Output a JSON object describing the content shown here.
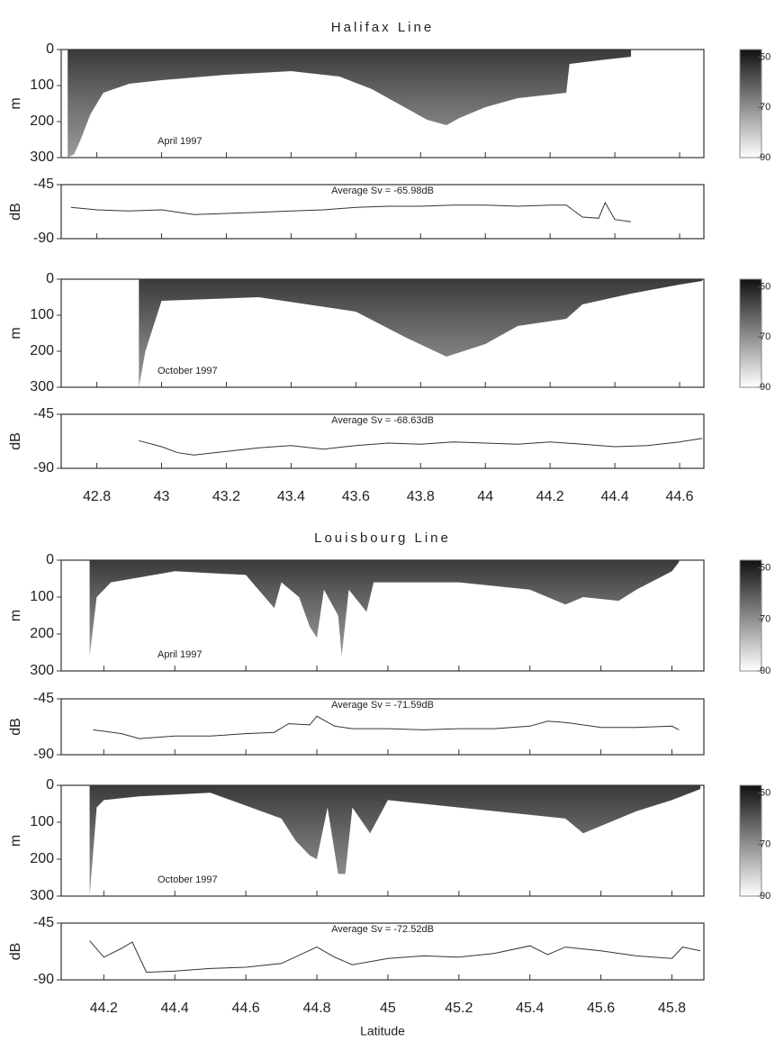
{
  "chart_data": [
    {
      "type": "echogram",
      "title": "Halifax Line",
      "annotation": "April 1997",
      "ylabel": "m",
      "x": [
        42.71,
        42.73,
        42.75,
        42.78,
        42.82,
        42.9,
        43.0,
        43.2,
        43.4,
        43.55,
        43.65,
        43.75,
        43.82,
        43.88,
        43.92,
        44.0,
        44.1,
        44.2,
        44.25,
        44.26,
        44.35,
        44.45
      ],
      "values": [
        300,
        290,
        250,
        180,
        120,
        95,
        85,
        70,
        60,
        75,
        110,
        160,
        195,
        210,
        190,
        160,
        135,
        125,
        120,
        40,
        30,
        20
      ],
      "xlim": [
        42.69,
        44.675
      ],
      "ylim": [
        300,
        0
      ],
      "yticks": [
        0,
        100,
        200,
        300
      ],
      "clim": [
        -90,
        -47
      ],
      "colorbar_ticks": [
        {
          "value": -50,
          "label": "50"
        },
        {
          "value": -70,
          "label": "70"
        },
        {
          "value": -90,
          "label": "90"
        }
      ]
    },
    {
      "type": "line",
      "annotation": "Average Sv = -65.98dB",
      "ylabel": "dB",
      "color": "#333333",
      "x": [
        42.72,
        42.8,
        42.9,
        43.0,
        43.1,
        43.2,
        43.3,
        43.4,
        43.5,
        43.6,
        43.7,
        43.8,
        43.9,
        44.0,
        44.1,
        44.2,
        44.25,
        44.3,
        44.35,
        44.37,
        44.4,
        44.45
      ],
      "values": [
        -64,
        -66,
        -67,
        -66,
        -70,
        -69,
        -68,
        -67,
        -66,
        -64,
        -63,
        -63,
        -62,
        -62,
        -63,
        -62,
        -62,
        -72,
        -73,
        -60,
        -74,
        -76
      ],
      "xlim": [
        42.69,
        44.675
      ],
      "ylim": [
        -90,
        -45
      ],
      "yticks": [
        -45,
        -90
      ]
    },
    {
      "type": "echogram",
      "annotation": "October 1997",
      "ylabel": "m",
      "x": [
        42.93,
        42.95,
        43.0,
        43.3,
        43.6,
        43.75,
        43.88,
        44.0,
        44.1,
        44.25,
        44.3,
        44.45,
        44.6,
        44.67
      ],
      "values": [
        300,
        200,
        60,
        50,
        90,
        160,
        215,
        180,
        130,
        110,
        70,
        40,
        15,
        5
      ],
      "xlim": [
        42.69,
        44.675
      ],
      "ylim": [
        300,
        0
      ],
      "yticks": [
        0,
        100,
        200,
        300
      ],
      "clim": [
        -90,
        -47
      ],
      "colorbar_ticks": [
        {
          "value": -50,
          "label": "50"
        },
        {
          "value": -70,
          "label": "70"
        },
        {
          "value": -90,
          "label": "90"
        }
      ]
    },
    {
      "type": "line",
      "annotation": "Average Sv = -68.63dB",
      "ylabel": "dB",
      "color": "#333333",
      "x": [
        42.93,
        43.0,
        43.05,
        43.1,
        43.2,
        43.3,
        43.4,
        43.5,
        43.6,
        43.7,
        43.8,
        43.9,
        44.0,
        44.1,
        44.2,
        44.3,
        44.4,
        44.5,
        44.6,
        44.67
      ],
      "values": [
        -67,
        -72,
        -77,
        -79,
        -76,
        -73,
        -71,
        -74,
        -71,
        -69,
        -70,
        -68,
        -69,
        -70,
        -68,
        -70,
        -72,
        -71,
        -68,
        -65
      ],
      "xlim": [
        42.69,
        44.675
      ],
      "ylim": [
        -90,
        -45
      ],
      "yticks": [
        -45,
        -90
      ],
      "xticks": [
        42.8,
        43,
        43.2,
        43.4,
        43.6,
        43.8,
        44,
        44.2,
        44.4,
        44.6
      ]
    },
    {
      "type": "echogram",
      "title": "Louisbourg Line",
      "annotation": "April 1997",
      "ylabel": "m",
      "x": [
        44.16,
        44.18,
        44.22,
        44.4,
        44.6,
        44.68,
        44.7,
        44.75,
        44.78,
        44.8,
        44.82,
        44.86,
        44.87,
        44.89,
        44.94,
        44.96,
        45.2,
        45.4,
        45.5,
        45.55,
        45.65,
        45.7,
        45.8,
        45.82
      ],
      "values": [
        260,
        100,
        60,
        30,
        40,
        130,
        60,
        100,
        180,
        210,
        80,
        150,
        260,
        80,
        140,
        60,
        60,
        80,
        120,
        100,
        110,
        80,
        30,
        5
      ],
      "xlim": [
        44.08,
        45.89
      ],
      "ylim": [
        300,
        0
      ],
      "yticks": [
        0,
        100,
        200,
        300
      ],
      "clim": [
        -90,
        -47
      ],
      "colorbar_ticks": [
        {
          "value": -50,
          "label": "50"
        },
        {
          "value": -70,
          "label": "70"
        },
        {
          "value": -90,
          "label": "90"
        }
      ]
    },
    {
      "type": "line",
      "annotation": "Average Sv = -71.59dB",
      "ylabel": "dB",
      "color": "#333333",
      "x": [
        44.17,
        44.25,
        44.3,
        44.4,
        44.5,
        44.6,
        44.68,
        44.72,
        44.78,
        44.8,
        44.85,
        44.9,
        45.0,
        45.1,
        45.2,
        45.3,
        45.4,
        45.45,
        45.5,
        45.6,
        45.7,
        45.8,
        45.82
      ],
      "values": [
        -70,
        -73,
        -77,
        -75,
        -75,
        -73,
        -72,
        -65,
        -66,
        -59,
        -67,
        -69,
        -69,
        -70,
        -69,
        -69,
        -67,
        -63,
        -64,
        -68,
        -68,
        -67,
        -70
      ],
      "xlim": [
        44.08,
        45.89
      ],
      "ylim": [
        -90,
        -45
      ],
      "yticks": [
        -45,
        -90
      ]
    },
    {
      "type": "echogram",
      "annotation": "October 1997",
      "ylabel": "m",
      "x": [
        44.16,
        44.18,
        44.2,
        44.3,
        44.5,
        44.7,
        44.74,
        44.78,
        44.8,
        44.83,
        44.86,
        44.88,
        44.9,
        44.95,
        45.0,
        45.2,
        45.4,
        45.5,
        45.55,
        45.6,
        45.7,
        45.8,
        45.88
      ],
      "values": [
        300,
        60,
        40,
        30,
        20,
        90,
        150,
        190,
        200,
        60,
        240,
        240,
        60,
        130,
        40,
        60,
        80,
        90,
        130,
        110,
        70,
        40,
        10
      ],
      "xlim": [
        44.08,
        45.89
      ],
      "ylim": [
        300,
        0
      ],
      "yticks": [
        0,
        100,
        200,
        300
      ],
      "clim": [
        -90,
        -47
      ],
      "colorbar_ticks": [
        {
          "value": -50,
          "label": "50"
        },
        {
          "value": -70,
          "label": "70"
        },
        {
          "value": -90,
          "label": "90"
        }
      ]
    },
    {
      "type": "line",
      "annotation": "Average Sv = -72.52dB",
      "ylabel": "dB",
      "xlabel": "Latitude",
      "color": "#333333",
      "x": [
        44.16,
        44.2,
        44.25,
        44.28,
        44.32,
        44.4,
        44.5,
        44.6,
        44.7,
        44.8,
        44.85,
        44.9,
        45.0,
        45.1,
        45.2,
        45.3,
        45.4,
        45.45,
        45.5,
        45.6,
        45.7,
        45.8,
        45.83,
        45.88
      ],
      "values": [
        -59,
        -72,
        -65,
        -60,
        -84,
        -83,
        -81,
        -80,
        -77,
        -64,
        -72,
        -78,
        -73,
        -71,
        -72,
        -69,
        -63,
        -70,
        -64,
        -67,
        -71,
        -73,
        -64,
        -67
      ],
      "xlim": [
        44.08,
        45.89
      ],
      "ylim": [
        -90,
        -45
      ],
      "yticks": [
        -45,
        -90
      ],
      "xticks": [
        44.2,
        44.4,
        44.6,
        44.8,
        45,
        45.2,
        45.4,
        45.6,
        45.8
      ]
    }
  ]
}
